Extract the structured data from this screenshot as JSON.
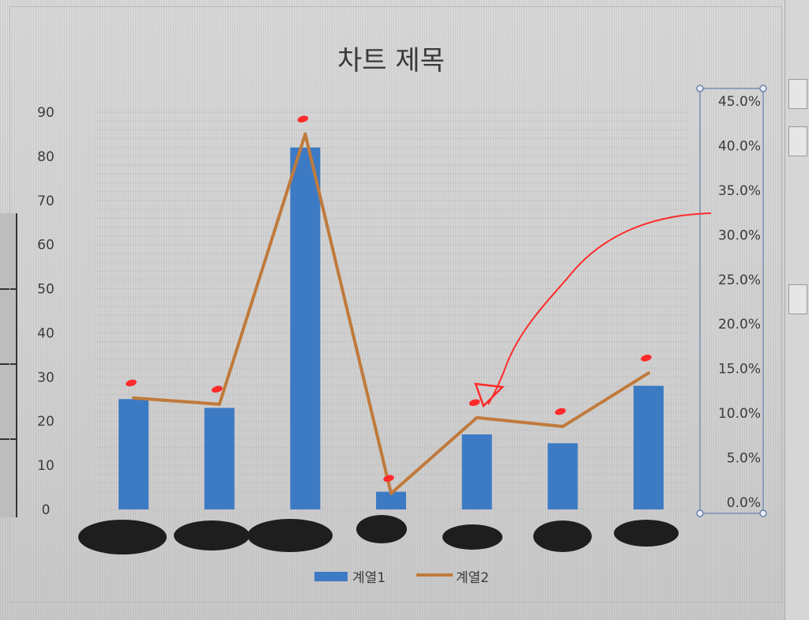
{
  "chart_data": {
    "type": "bar",
    "title": "차트 제목",
    "categories": [
      "",
      "",
      "",
      "",
      "",
      "",
      ""
    ],
    "series": [
      {
        "name": "계열1",
        "type": "bar",
        "axis": "left",
        "values": [
          25,
          23,
          82,
          4,
          17,
          15,
          28
        ]
      },
      {
        "name": "계열2",
        "type": "line",
        "axis": "right",
        "values": [
          0.117,
          0.11,
          0.413,
          0.01,
          0.095,
          0.085,
          0.145
        ]
      }
    ],
    "y_left": {
      "ylim": [
        0,
        90
      ],
      "ticks": [
        "0",
        "10",
        "20",
        "30",
        "40",
        "50",
        "60",
        "70",
        "80",
        "90"
      ]
    },
    "y_right": {
      "ylim": [
        0,
        0.45
      ],
      "ticks": [
        "0.0%",
        "5.0%",
        "10.0%",
        "15.0%",
        "20.0%",
        "25.0%",
        "30.0%",
        "35.0%",
        "40.0%",
        "45.0%"
      ]
    },
    "grid": true,
    "legend_position": "bottom",
    "colors": {
      "bar": "#3d7ac4",
      "line": "#c07a3c",
      "annotation": "#ff2a2a",
      "redaction": "#1e1e1e",
      "grid": "#bdbdbd"
    }
  }
}
